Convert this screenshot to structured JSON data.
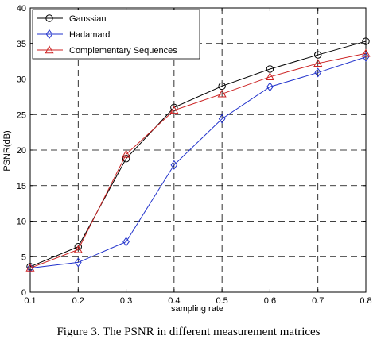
{
  "caption": "Figure 3.  The PSNR in different measurement matrices",
  "chart_data": {
    "type": "line",
    "xlabel": "sampling rate",
    "ylabel": "PSNR(dB)",
    "xlim": [
      0.1,
      0.8
    ],
    "ylim": [
      0,
      40
    ],
    "xticks": [
      "0.1",
      "0.2",
      "0.3",
      "0.4",
      "0.5",
      "0.6",
      "0.7",
      "0.8"
    ],
    "yticks": [
      "0",
      "5",
      "10",
      "15",
      "20",
      "25",
      "30",
      "35",
      "40"
    ],
    "grid": "dashed",
    "legend_position": "top-left",
    "x": [
      0.1,
      0.2,
      0.3,
      0.4,
      0.5,
      0.6,
      0.7,
      0.8
    ],
    "series": [
      {
        "name": "Gaussian",
        "marker": "circle",
        "color": "#000000",
        "values": [
          3.6,
          6.4,
          18.8,
          26.0,
          29.0,
          31.4,
          33.4,
          35.3
        ]
      },
      {
        "name": "Hadamard",
        "marker": "diamond",
        "color": "#2233cc",
        "values": [
          3.4,
          4.2,
          7.1,
          17.9,
          24.4,
          28.9,
          30.9,
          33.1
        ]
      },
      {
        "name": "Complementary Sequences",
        "marker": "triangle",
        "color": "#cc2222",
        "values": [
          3.4,
          6.0,
          19.4,
          25.6,
          27.9,
          30.3,
          32.2,
          33.6
        ]
      }
    ]
  }
}
